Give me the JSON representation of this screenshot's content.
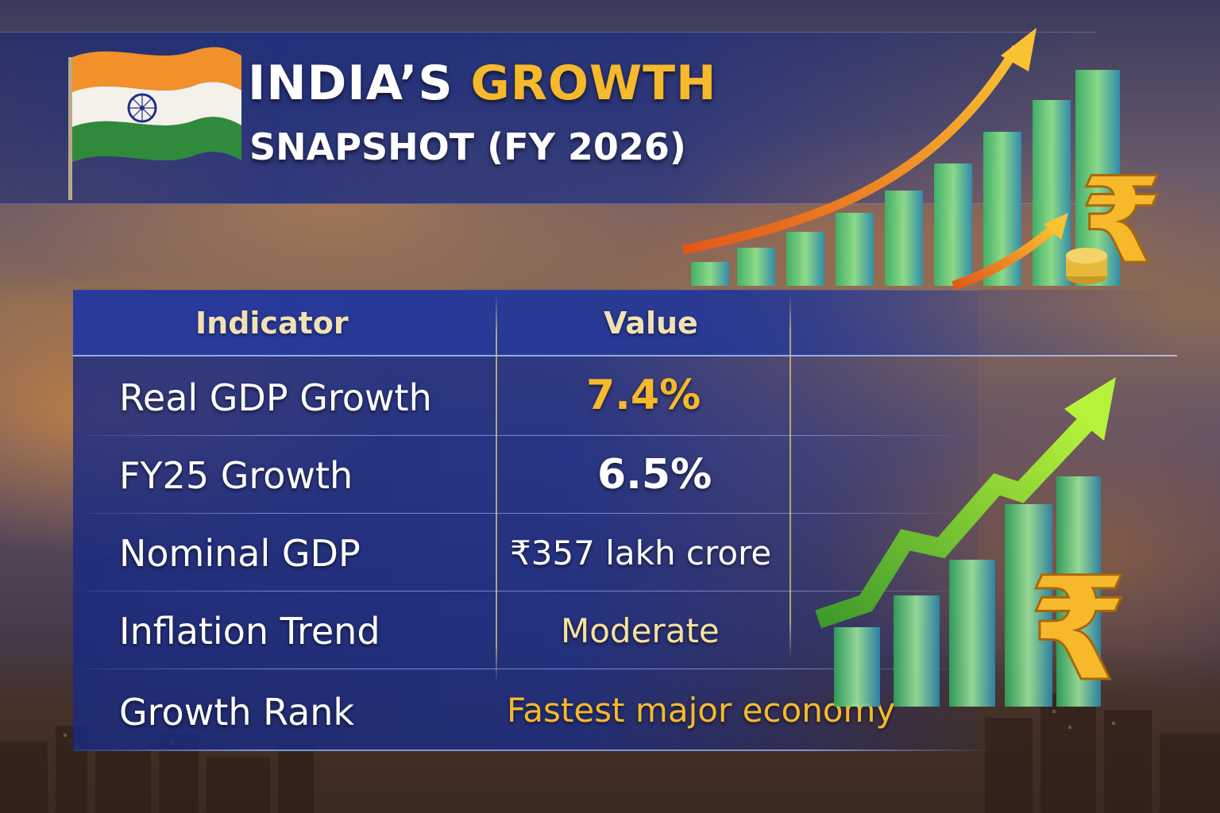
{
  "title": {
    "line1_prefix": "INDIA’S",
    "line1_accent": "GROWTH",
    "line2": "SNAPSHOT (FY 2026)"
  },
  "table": {
    "headers": {
      "indicator": "Indicator",
      "value": "Value"
    },
    "rows": [
      {
        "indicator": "Real GDP Growth",
        "value": "7.4%"
      },
      {
        "indicator": "FY25 Growth",
        "value": "6.5%"
      },
      {
        "indicator": "Nominal GDP",
        "value": "₹357 lakh crore"
      },
      {
        "indicator": "Inflation Trend",
        "value": "Moderate"
      },
      {
        "indicator": "Growth Rank",
        "value": "Fastest major economy"
      }
    ]
  },
  "icons": [
    "india-flag-icon",
    "rupee-icon",
    "growth-arrow-icon",
    "bar-chart-icon"
  ],
  "colors": {
    "accent": "#f6b92c",
    "panel": "#1e3a8a",
    "text": "#ffffff",
    "header": "#f3e1b4"
  }
}
